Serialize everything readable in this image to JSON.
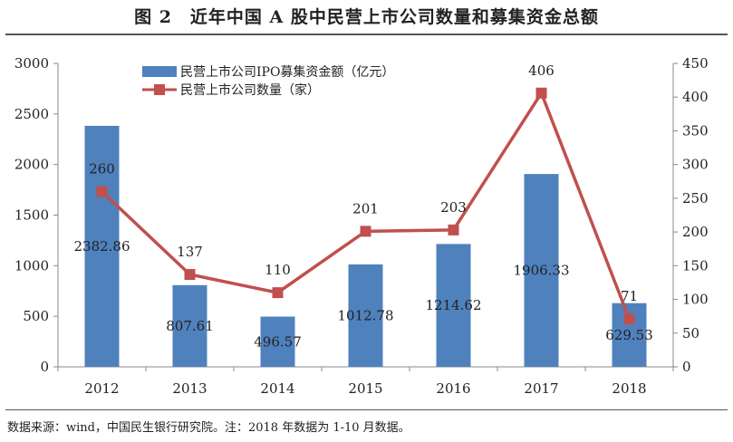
{
  "header": {
    "title": "图 2　近年中国 A 股中民营上市公司数量和募集资金总额"
  },
  "footer": {
    "source": "数据来源：wind，中国民生银行研究院。注：2018 年数据为 1-10 月数据。"
  },
  "chart_data": {
    "type": "bar",
    "categories": [
      "2012",
      "2013",
      "2014",
      "2015",
      "2016",
      "2017",
      "2018"
    ],
    "series": [
      {
        "name": "民营上市公司IPO募集资金额（亿元）",
        "type": "bar",
        "axis": "left",
        "color": "#4F81BD",
        "values": [
          2382.86,
          807.61,
          496.57,
          1012.78,
          1214.62,
          1906.33,
          629.53
        ],
        "labels": [
          "2382.86",
          "807.61",
          "496.57",
          "1012.78",
          "1214.62",
          "1906.33",
          "629.53"
        ]
      },
      {
        "name": "民营上市公司数量（家）",
        "type": "line",
        "axis": "right",
        "color": "#C0504D",
        "values": [
          260,
          137,
          110,
          201,
          203,
          406,
          71
        ],
        "labels": [
          "260",
          "137",
          "110",
          "201",
          "203",
          "406",
          "71"
        ]
      }
    ],
    "ylim_left": [
      0,
      3000
    ],
    "yticks_left": [
      "0",
      "500",
      "1000",
      "1500",
      "2000",
      "2500",
      "3000"
    ],
    "ylim_right": [
      0,
      450
    ],
    "yticks_right": [
      "0",
      "50",
      "100",
      "150",
      "200",
      "250",
      "300",
      "350",
      "400",
      "450"
    ],
    "grid": false,
    "legend_position": "top-left"
  }
}
